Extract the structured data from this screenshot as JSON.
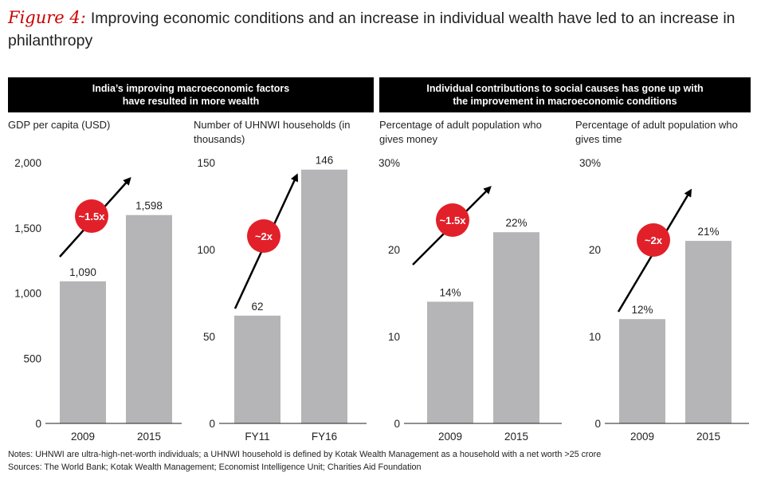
{
  "figure": {
    "label": "Figure 4:",
    "title": "Improving economic conditions and an increase in individual wealth have led to an increase in philanthropy"
  },
  "banners": {
    "left": [
      "India’s improving macroeconomic factors",
      "have resulted in more wealth"
    ],
    "right": [
      "Individual contributions to social causes has gone up with",
      "the improvement in macroeconomic conditions"
    ]
  },
  "colors": {
    "bar": "#b5b5b7",
    "badge": "#e2202a",
    "arrow": "#000000",
    "axis": "#222222"
  },
  "chart_data": [
    {
      "type": "bar",
      "title": "GDP per capita (USD)",
      "categories": [
        "2009",
        "2015"
      ],
      "values": [
        1090,
        1598
      ],
      "data_labels": [
        "1,090",
        "1,598"
      ],
      "yticks": [
        0,
        500,
        1000,
        1500,
        2000
      ],
      "ytick_labels": [
        "0",
        "500",
        "1,000",
        "1,500",
        "2,000"
      ],
      "ylim": [
        0,
        2000
      ],
      "annotation": "~1.5x"
    },
    {
      "type": "bar",
      "title": "Number of UHNWI households (in thousands)",
      "categories": [
        "FY11",
        "FY16"
      ],
      "values": [
        62,
        146
      ],
      "data_labels": [
        "62",
        "146"
      ],
      "yticks": [
        0,
        50,
        100,
        150
      ],
      "ytick_labels": [
        "0",
        "50",
        "100",
        "150"
      ],
      "ylim": [
        0,
        150
      ],
      "annotation": "~2x"
    },
    {
      "type": "bar",
      "title": "Percentage of adult population who gives money",
      "categories": [
        "2009",
        "2015"
      ],
      "values": [
        14,
        22
      ],
      "data_labels": [
        "14%",
        "22%"
      ],
      "yticks": [
        0,
        10,
        20,
        30
      ],
      "ytick_labels": [
        "0",
        "10",
        "20",
        "30%"
      ],
      "ylim": [
        0,
        30
      ],
      "annotation": "~1.5x"
    },
    {
      "type": "bar",
      "title": "Percentage of adult population who gives time",
      "categories": [
        "2009",
        "2015"
      ],
      "values": [
        12,
        21
      ],
      "data_labels": [
        "12%",
        "21%"
      ],
      "yticks": [
        0,
        10,
        20,
        30
      ],
      "ytick_labels": [
        "0",
        "10",
        "20",
        "30%"
      ],
      "ylim": [
        0,
        30
      ],
      "annotation": "~2x"
    }
  ],
  "notes": {
    "line1": "Notes: UHNWI are ultra-high-net-worth individuals; a UHNWI household is defined by Kotak Wealth Management as a household with a net worth >25 crore",
    "line2": "Sources: The World Bank; Kotak Wealth Management; Economist Intelligence Unit; Charities Aid Foundation"
  }
}
